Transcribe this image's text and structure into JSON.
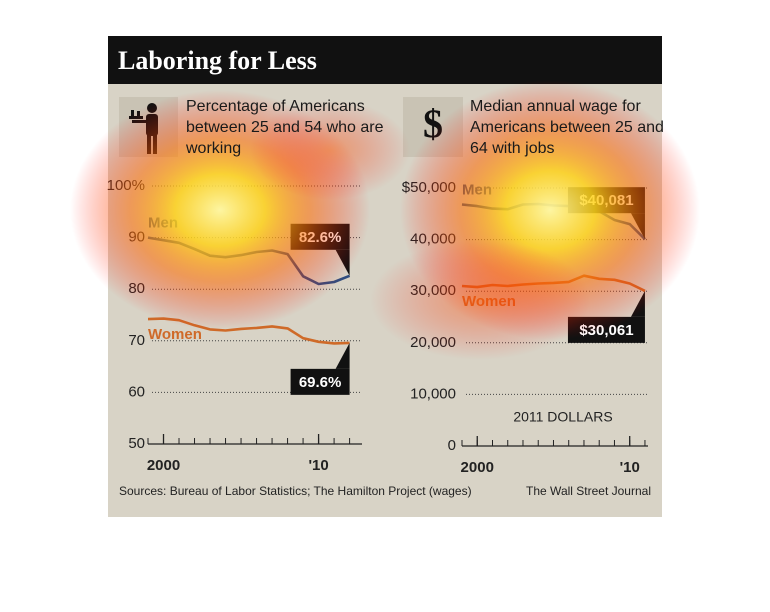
{
  "header": {
    "title": "Laboring for Less"
  },
  "chart_data": [
    {
      "type": "line",
      "title": "Percentage of Americans between 25 and 54 who are working",
      "x": [
        1999,
        2000,
        2001,
        2002,
        2003,
        2004,
        2005,
        2006,
        2007,
        2008,
        2009,
        2010,
        2011,
        2012
      ],
      "series": [
        {
          "name": "Men",
          "color": "#2f4c7e",
          "values": [
            90.0,
            89.5,
            89.0,
            87.8,
            86.5,
            86.2,
            86.6,
            87.2,
            87.5,
            86.8,
            82.5,
            81.0,
            81.4,
            82.6
          ],
          "end_label": "82.6%"
        },
        {
          "name": "Women",
          "color": "#cf6a28",
          "values": [
            74.2,
            74.3,
            74.0,
            73.0,
            72.2,
            72.0,
            72.3,
            72.5,
            72.8,
            72.4,
            70.5,
            69.8,
            69.5,
            69.6
          ],
          "end_label": "69.6%"
        }
      ],
      "xlim": [
        1999,
        2012.8
      ],
      "xticks": [
        2000,
        {
          "value": 2010,
          "label": "'10"
        }
      ],
      "ylim": [
        50,
        100
      ],
      "yticks": [
        50,
        60,
        70,
        80,
        90,
        {
          "value": 100,
          "label": "100%"
        }
      ],
      "grid": true
    },
    {
      "type": "line",
      "title": "Median annual wage for Americans between 25 and 64 with jobs",
      "icon": "$",
      "note": "2011 DOLLARS",
      "x": [
        1999,
        2000,
        2001,
        2002,
        2003,
        2004,
        2005,
        2006,
        2007,
        2008,
        2009,
        2010,
        2011
      ],
      "series": [
        {
          "name": "Men",
          "color": "#2f4c7e",
          "values": [
            46800,
            46500,
            46000,
            45900,
            46800,
            46900,
            46600,
            46500,
            46200,
            45500,
            43800,
            43000,
            40081
          ],
          "end_label": "$40,081"
        },
        {
          "name": "Women",
          "color": "#cf6a28",
          "values": [
            31000,
            30800,
            31200,
            31000,
            31300,
            31500,
            31600,
            31800,
            33000,
            32400,
            32200,
            31500,
            30061
          ],
          "end_label": "$30,061"
        }
      ],
      "xlim": [
        1999,
        2011.2
      ],
      "xticks": [
        2000,
        {
          "value": 2010,
          "label": "'10"
        }
      ],
      "ylim": [
        0,
        50000
      ],
      "yticks": [
        0,
        {
          "value": 10000,
          "label": "10,000"
        },
        {
          "value": 20000,
          "label": "20,000"
        },
        {
          "value": 30000,
          "label": "30,000"
        },
        {
          "value": 40000,
          "label": "40,000"
        },
        {
          "value": 50000,
          "label": "$50,000"
        }
      ],
      "grid": true
    }
  ],
  "footer": {
    "sources": "Sources: Bureau of Labor Statistics; The Hamilton Project (wages)",
    "credit": "The Wall Street Journal"
  }
}
